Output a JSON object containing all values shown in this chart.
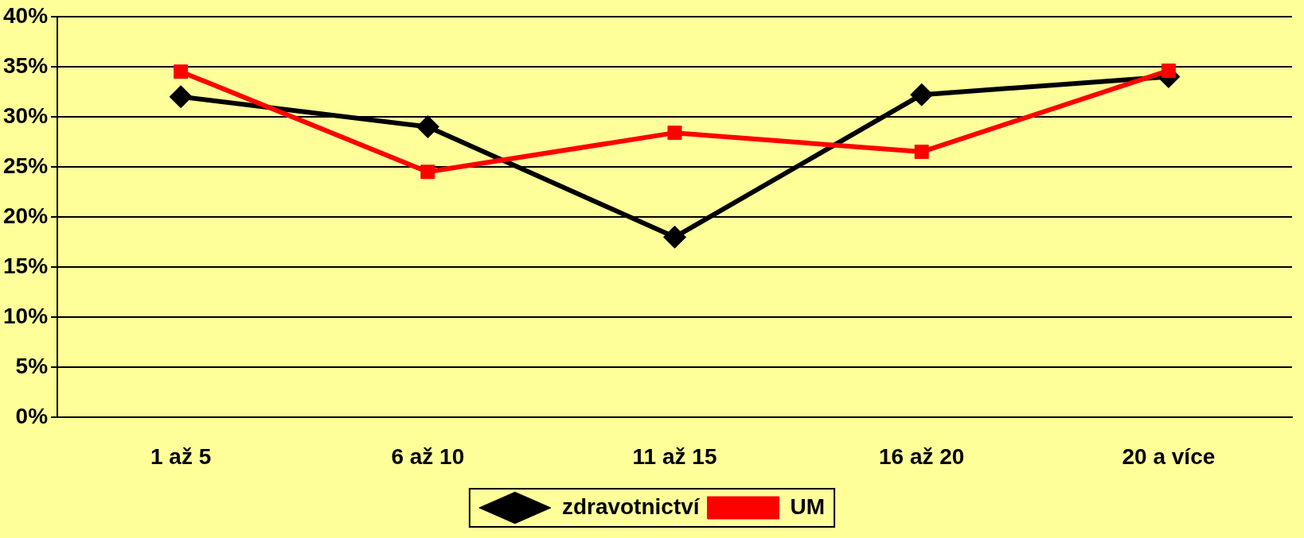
{
  "chart_data": {
    "type": "line",
    "categories": [
      "1 až 5",
      "6 až 10",
      "11 až 15",
      "16 až 20",
      "20 a více"
    ],
    "series": [
      {
        "name": "zdravotnictví",
        "color": "#000000",
        "marker": "diamond",
        "values": [
          32,
          29,
          18,
          32.2,
          34
        ]
      },
      {
        "name": "UM",
        "color": "#ff0000",
        "marker": "square",
        "values": [
          34.5,
          24.5,
          28.4,
          26.5,
          34.6
        ]
      }
    ],
    "ylim": [
      0,
      40
    ],
    "yticks": [
      {
        "value": 0,
        "label": "0%"
      },
      {
        "value": 5,
        "label": "5%"
      },
      {
        "value": 10,
        "label": "10%"
      },
      {
        "value": 15,
        "label": "15%"
      },
      {
        "value": 20,
        "label": "20%"
      },
      {
        "value": 25,
        "label": "25%"
      },
      {
        "value": 30,
        "label": "30%"
      },
      {
        "value": 35,
        "label": "35%"
      },
      {
        "value": 40,
        "label": "40%"
      }
    ],
    "grid": "y",
    "legend": "bottom",
    "line_style": "solid"
  }
}
